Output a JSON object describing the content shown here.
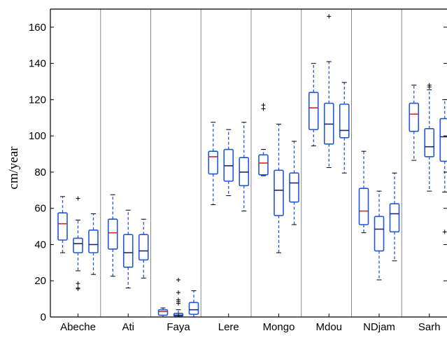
{
  "chart_data": {
    "type": "boxplot",
    "title": "",
    "xlabel": "",
    "ylabel": "cm/year",
    "ylim": [
      0,
      170
    ],
    "yticks": [
      0,
      20,
      40,
      60,
      80,
      100,
      120,
      140,
      160
    ],
    "grid": false,
    "legend": "none",
    "colors": {
      "box": "#2255dd",
      "median_first": "#dd2222",
      "median_other": "#1a2a6a",
      "separator": "#888888",
      "flier": "#000000"
    },
    "groups": [
      {
        "name": "Abeche",
        "boxes": [
          {
            "whislo": 35.5,
            "q1": 42.5,
            "med": 51.5,
            "q3": 57.5,
            "whishi": 66.5,
            "fliers": []
          },
          {
            "whislo": 25.5,
            "q1": 35.5,
            "med": 40.5,
            "q3": 43.5,
            "whishi": 53.5,
            "fliers": [
              65.5,
              18.5,
              16.0,
              15.5
            ]
          },
          {
            "whislo": 23.5,
            "q1": 35.5,
            "med": 40.0,
            "q3": 48.0,
            "whishi": 57.0,
            "fliers": []
          }
        ]
      },
      {
        "name": "Ati",
        "boxes": [
          {
            "whislo": 22.5,
            "q1": 37.5,
            "med": 46.5,
            "q3": 54.0,
            "whishi": 67.5,
            "fliers": []
          },
          {
            "whislo": 16.0,
            "q1": 27.5,
            "med": 35.5,
            "q3": 45.5,
            "whishi": 59.0,
            "fliers": []
          },
          {
            "whislo": 21.5,
            "q1": 31.5,
            "med": 36.5,
            "q3": 45.5,
            "whishi": 54.0,
            "fliers": []
          }
        ]
      },
      {
        "name": "Faya",
        "boxes": [
          {
            "whislo": 0.0,
            "q1": 1.0,
            "med": 3.0,
            "q3": 4.0,
            "whishi": 5.0,
            "fliers": []
          },
          {
            "whislo": 0.0,
            "q1": 0.5,
            "med": 1.0,
            "q3": 2.0,
            "whishi": 4.0,
            "fliers": [
              20.5,
              13.5,
              9.5,
              8.5,
              7.5
            ]
          },
          {
            "whislo": 0.0,
            "q1": 1.5,
            "med": 4.0,
            "q3": 8.0,
            "whishi": 14.5,
            "fliers": []
          }
        ]
      },
      {
        "name": "Lere",
        "boxes": [
          {
            "whislo": 62.0,
            "q1": 79.0,
            "med": 88.5,
            "q3": 91.5,
            "whishi": 107.5,
            "fliers": []
          },
          {
            "whislo": 67.0,
            "q1": 75.0,
            "med": 83.5,
            "q3": 92.5,
            "whishi": 103.5,
            "fliers": []
          },
          {
            "whislo": 58.5,
            "q1": 72.5,
            "med": 80.0,
            "q3": 88.0,
            "whishi": 107.5,
            "fliers": []
          }
        ]
      },
      {
        "name": "Mongo",
        "boxes": [
          {
            "whislo": 78.0,
            "q1": 78.5,
            "med": 85.0,
            "q3": 89.5,
            "whishi": 92.5,
            "fliers": [
              117.0,
              115.0
            ]
          },
          {
            "whislo": 35.5,
            "q1": 56.0,
            "med": 70.0,
            "q3": 81.0,
            "whishi": 106.5,
            "fliers": []
          },
          {
            "whislo": 51.0,
            "q1": 63.5,
            "med": 74.0,
            "q3": 79.5,
            "whishi": 97.0,
            "fliers": []
          }
        ]
      },
      {
        "name": "Mdou",
        "boxes": [
          {
            "whislo": 94.5,
            "q1": 103.5,
            "med": 115.5,
            "q3": 124.0,
            "whishi": 140.0,
            "fliers": []
          },
          {
            "whislo": 82.5,
            "q1": 95.5,
            "med": 106.5,
            "q3": 118.0,
            "whishi": 141.0,
            "fliers": [
              166.0
            ]
          },
          {
            "whislo": 79.5,
            "q1": 99.0,
            "med": 103.0,
            "q3": 117.5,
            "whishi": 129.5,
            "fliers": []
          }
        ]
      },
      {
        "name": "NDjam",
        "boxes": [
          {
            "whislo": 46.5,
            "q1": 51.0,
            "med": 58.5,
            "q3": 71.0,
            "whishi": 91.5,
            "fliers": []
          },
          {
            "whislo": 20.5,
            "q1": 36.5,
            "med": 48.5,
            "q3": 55.5,
            "whishi": 69.5,
            "fliers": []
          },
          {
            "whislo": 31.0,
            "q1": 47.0,
            "med": 57.0,
            "q3": 62.5,
            "whishi": 79.5,
            "fliers": []
          }
        ]
      },
      {
        "name": "Sarh",
        "boxes": [
          {
            "whislo": 86.5,
            "q1": 102.5,
            "med": 112.0,
            "q3": 118.0,
            "whishi": 128.0,
            "fliers": []
          },
          {
            "whislo": 69.5,
            "q1": 88.5,
            "med": 94.0,
            "q3": 104.0,
            "whishi": 125.5,
            "fliers": [
              128.0,
              127.0
            ]
          },
          {
            "whislo": 69.0,
            "q1": 86.0,
            "med": 99.5,
            "q3": 109.5,
            "whishi": 120.0,
            "fliers": [
              47.0
            ]
          }
        ]
      }
    ]
  }
}
